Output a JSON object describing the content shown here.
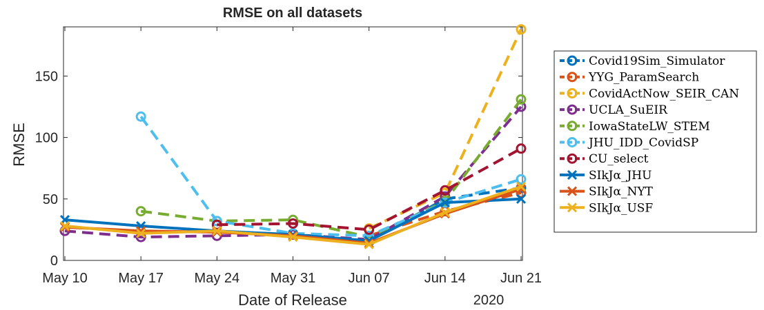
{
  "chart_data": {
    "type": "line",
    "title": "RMSE on all datasets",
    "xlabel": "Date of Release",
    "ylabel": "RMSE",
    "x_secondary_label": "2020",
    "categories": [
      "May 10",
      "May 17",
      "May 24",
      "May 31",
      "Jun 07",
      "Jun 14",
      "Jun 21"
    ],
    "yticks": [
      "0",
      "50",
      "100",
      "150"
    ],
    "ylim": [
      0,
      190
    ],
    "grid": false,
    "legend_position": "right",
    "series": [
      {
        "name": "Covid19Sim_Simulator",
        "color": "#0072BD",
        "style": "dashed",
        "marker": "circle",
        "values": [
          null,
          null,
          null,
          null,
          16,
          50,
          59
        ]
      },
      {
        "name": "YYG_ParamSearch",
        "color": "#D95319",
        "style": "dashed",
        "marker": "circle",
        "values": [
          null,
          null,
          null,
          null,
          20,
          40,
          55
        ]
      },
      {
        "name": "CovidActNow_SEIR_CAN",
        "color": "#EDB120",
        "style": "dashed",
        "marker": "circle",
        "values": [
          null,
          null,
          null,
          null,
          26,
          55,
          188
        ]
      },
      {
        "name": "UCLA_SuEIR",
        "color": "#7E2F8E",
        "style": "dashed",
        "marker": "circle",
        "values": [
          24,
          19,
          20,
          21,
          17,
          52,
          125
        ]
      },
      {
        "name": "IowaStateLW_STEM",
        "color": "#77AC30",
        "style": "dashed",
        "marker": "circle",
        "values": [
          null,
          40,
          32,
          33,
          19,
          48,
          131
        ]
      },
      {
        "name": "JHU_IDD_CovidSP",
        "color": "#4DBEEE",
        "style": "dashed",
        "marker": "circle",
        "values": [
          null,
          117,
          32,
          22,
          20,
          47,
          66
        ]
      },
      {
        "name": "CU_select",
        "color": "#A2142F",
        "style": "dashed",
        "marker": "circle",
        "values": [
          null,
          null,
          29,
          30,
          25,
          57,
          91
        ]
      },
      {
        "name": "SIkJα_JHU",
        "color": "#0072BD",
        "style": "solid",
        "marker": "x",
        "values": [
          33,
          28,
          24,
          21,
          16,
          47,
          50
        ]
      },
      {
        "name": "SIkJα_NYT",
        "color": "#D95319",
        "style": "solid",
        "marker": "x",
        "values": [
          27,
          24,
          23,
          20,
          14,
          38,
          58
        ]
      },
      {
        "name": "SIkJα_USF",
        "color": "#EDB120",
        "style": "solid",
        "marker": "x",
        "values": [
          28,
          22,
          24,
          19,
          13,
          39,
          60
        ]
      }
    ]
  }
}
